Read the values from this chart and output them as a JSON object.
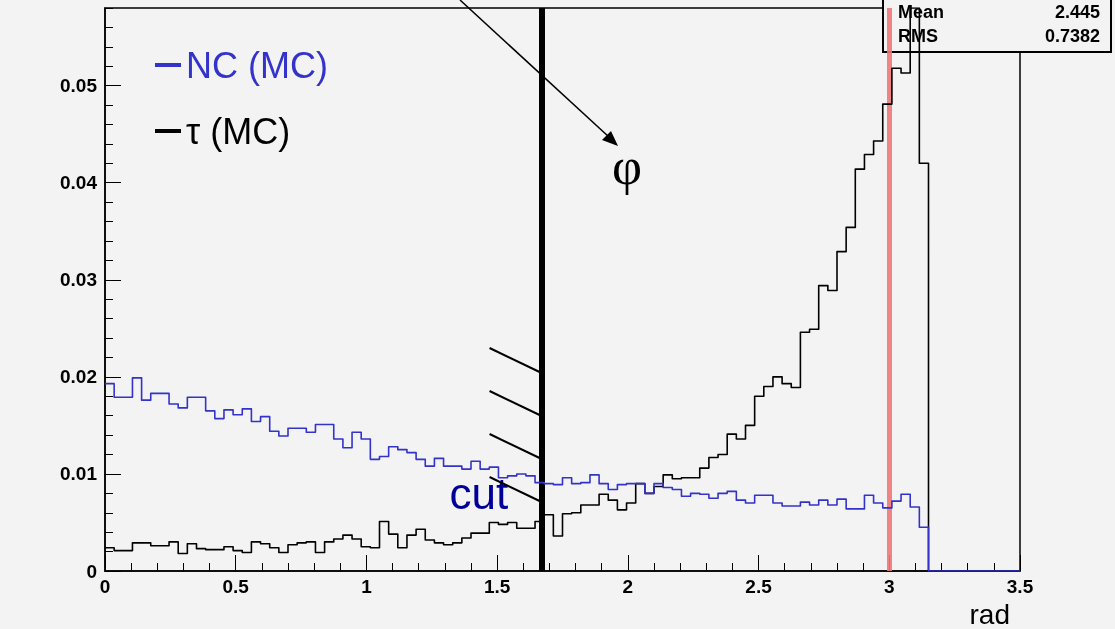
{
  "chart_data": {
    "type": "histogram",
    "xlabel": "rad",
    "bins": [
      0,
      0.035,
      0.07,
      0.105,
      0.14,
      0.175,
      0.21,
      0.245,
      0.28,
      0.315,
      0.35,
      0.385,
      0.42,
      0.455,
      0.49,
      0.525,
      0.56,
      0.595,
      0.63,
      0.665,
      0.7,
      0.735,
      0.77,
      0.805,
      0.84,
      0.875,
      0.91,
      0.945,
      0.98,
      1.015,
      1.05,
      1.085,
      1.12,
      1.155,
      1.19,
      1.225,
      1.26,
      1.295,
      1.33,
      1.365,
      1.4,
      1.435,
      1.47,
      1.505,
      1.54,
      1.575,
      1.61,
      1.645,
      1.68,
      1.715,
      1.75,
      1.785,
      1.82,
      1.855,
      1.89,
      1.925,
      1.96,
      1.995,
      2.03,
      2.065,
      2.1,
      2.135,
      2.17,
      2.205,
      2.24,
      2.275,
      2.31,
      2.345,
      2.38,
      2.415,
      2.45,
      2.485,
      2.52,
      2.555,
      2.59,
      2.625,
      2.66,
      2.695,
      2.73,
      2.765,
      2.8,
      2.835,
      2.87,
      2.905,
      2.94,
      2.975,
      3.01,
      3.045,
      3.08,
      3.115,
      3.15,
      3.185,
      3.22,
      3.255,
      3.29,
      3.325,
      3.36,
      3.395,
      3.43,
      3.465,
      3.5
    ],
    "series": [
      {
        "name": "NC (MC)",
        "color": "#3333cc",
        "values": [
          0.0193,
          0.0179,
          0.0179,
          0.0199,
          0.0176,
          0.0183,
          0.0183,
          0.0172,
          0.0168,
          0.0179,
          0.0179,
          0.0165,
          0.0157,
          0.0166,
          0.0161,
          0.0167,
          0.0154,
          0.0159,
          0.0144,
          0.0139,
          0.0147,
          0.0147,
          0.0143,
          0.0151,
          0.0151,
          0.0136,
          0.0127,
          0.0143,
          0.0136,
          0.0115,
          0.0118,
          0.0128,
          0.0125,
          0.0122,
          0.0115,
          0.0108,
          0.0116,
          0.0108,
          0.0108,
          0.0105,
          0.0113,
          0.0105,
          0.0107,
          0.0096,
          0.0098,
          0.01,
          0.0098,
          0.0091,
          0.009,
          0.0089,
          0.0096,
          0.009,
          0.0091,
          0.0099,
          0.009,
          0.0084,
          0.0089,
          0.009,
          0.009,
          0.008,
          0.009,
          0.0086,
          0.0084,
          0.0077,
          0.008,
          0.0079,
          0.0075,
          0.008,
          0.0082,
          0.0073,
          0.007,
          0.0078,
          0.0078,
          0.007,
          0.0067,
          0.0067,
          0.0071,
          0.0068,
          0.0073,
          0.0068,
          0.0074,
          0.0064,
          0.0064,
          0.0078,
          0.007,
          0.0065,
          0.0072,
          0.0079,
          0.0066,
          0.0045,
          0,
          0,
          0,
          0,
          0,
          0,
          0,
          0,
          0,
          0
        ]
      },
      {
        "name": "τ (MC)",
        "color": "#000000",
        "values": [
          0.0024,
          0.0021,
          0.0021,
          0.0029,
          0.0029,
          0.0026,
          0.0026,
          0.003,
          0.0018,
          0.0028,
          0.0023,
          0.0022,
          0.0022,
          0.0025,
          0.0021,
          0.0019,
          0.003,
          0.0028,
          0.0024,
          0.0019,
          0.0027,
          0.0029,
          0.003,
          0.0019,
          0.003,
          0.0033,
          0.0037,
          0.0033,
          0.0025,
          0.0024,
          0.0051,
          0.0038,
          0.0024,
          0.0037,
          0.0043,
          0.0032,
          0.0029,
          0.0027,
          0.0029,
          0.0034,
          0.0039,
          0.0039,
          0.005,
          0.0048,
          0.005,
          0.0044,
          0.0044,
          0.0051,
          0.0058,
          0.0036,
          0.0059,
          0.006,
          0.0068,
          0.0068,
          0.0079,
          0.0073,
          0.0063,
          0.007,
          0.009,
          0.008,
          0.0087,
          0.0099,
          0.0095,
          0.0096,
          0.0096,
          0.0106,
          0.0117,
          0.012,
          0.0141,
          0.0136,
          0.015,
          0.018,
          0.019,
          0.02,
          0.0193,
          0.0189,
          0.0246,
          0.0249,
          0.0294,
          0.0289,
          0.0329,
          0.0354,
          0.0414,
          0.0429,
          0.0443,
          0.0481,
          0.0518,
          0.0513,
          0.058,
          0.042,
          0,
          0,
          0,
          0,
          0,
          0,
          0,
          0,
          0,
          0
        ]
      }
    ],
    "xlim": [
      0,
      3.5
    ],
    "xticks": [
      0,
      0.5,
      1,
      1.5,
      2,
      2.5,
      3,
      3.5
    ],
    "ylim": [
      0,
      0.058
    ],
    "yticks": [
      0,
      0.01,
      0.02,
      0.03,
      0.04,
      0.05
    ],
    "ref_lines": [
      {
        "axis": "x",
        "value": 1.67,
        "label": "cut",
        "color": "#000000"
      },
      {
        "axis": "x",
        "value": 3,
        "color": "#f07878"
      }
    ],
    "annotations": [
      "φ",
      "Mean",
      "2.445",
      "RMS",
      "0.7382"
    ],
    "legend": "top left",
    "grid": false
  }
}
